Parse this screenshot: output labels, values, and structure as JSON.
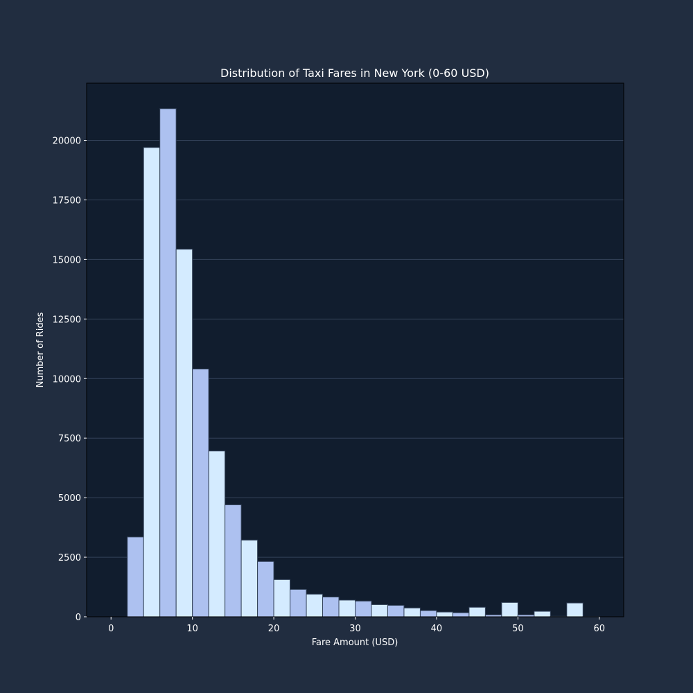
{
  "chart_data": {
    "type": "bar",
    "title": "Distribution of Taxi Fares in New York (0-60 USD)",
    "xlabel": "Fare Amount (USD)",
    "ylabel": "Number of Rides",
    "xlim": [
      -3,
      63
    ],
    "ylim": [
      0,
      22400
    ],
    "xticks": [
      0,
      10,
      20,
      30,
      40,
      50,
      60
    ],
    "yticks": [
      0,
      2500,
      5000,
      7500,
      10000,
      12500,
      15000,
      17500,
      20000
    ],
    "grid": "horizontal",
    "bin_edges": [
      0,
      2,
      4,
      6,
      8,
      10,
      12,
      14,
      16,
      18,
      20,
      22,
      24,
      26,
      28,
      30,
      32,
      34,
      36,
      38,
      40,
      42,
      44,
      46,
      48,
      50,
      52,
      54,
      56,
      58,
      60
    ],
    "values": [
      0,
      3350,
      19700,
      21330,
      15430,
      10400,
      6960,
      4700,
      3220,
      2320,
      1560,
      1150,
      950,
      830,
      700,
      660,
      510,
      480,
      370,
      260,
      200,
      170,
      400,
      80,
      600,
      80,
      230,
      20,
      580,
      10
    ],
    "colors": {
      "background": "#212d40",
      "plot_background": "#111d2e",
      "bar_light": "#d4ebff",
      "bar_blue": "#adc1f0",
      "bar_edge": "#34435a",
      "grid": "#34435a",
      "text": "#ffffff"
    }
  }
}
